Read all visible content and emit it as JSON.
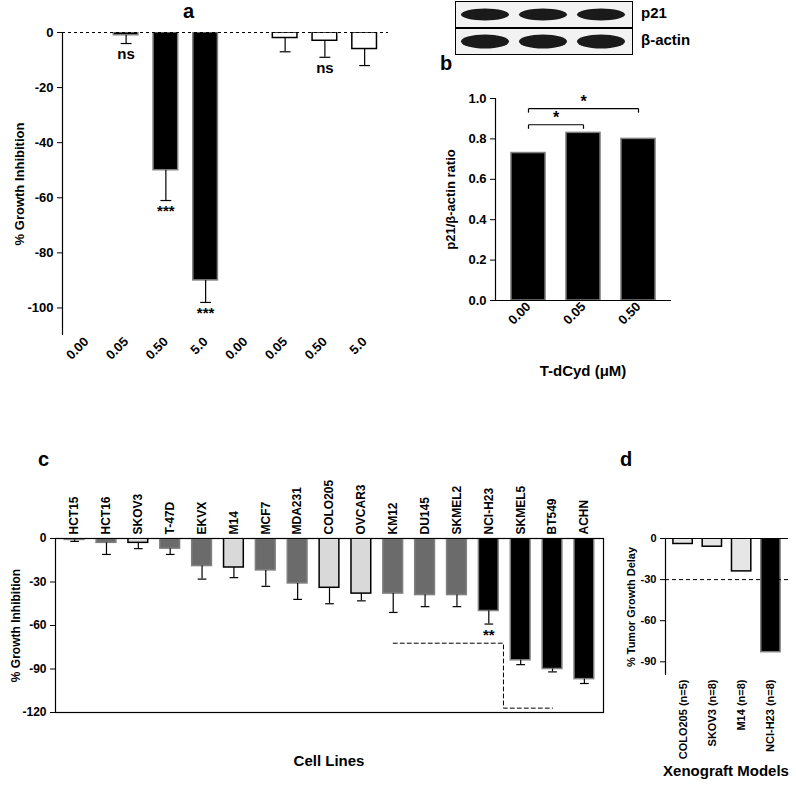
{
  "chart_data": [
    {
      "type": "bar",
      "panel_label": "a",
      "categories": [
        "0.00",
        "0.05",
        "0.50",
        "5.0",
        "0.00",
        "0.05",
        "0.50",
        "5.0"
      ],
      "values": [
        0,
        -1,
        -50,
        -90,
        0,
        -2,
        -3,
        -6
      ],
      "errors": [
        0,
        3,
        11,
        8,
        0,
        5,
        6,
        6
      ],
      "colors": [
        "#000000",
        "#000000",
        "#000000",
        "#000000",
        "#ffffff",
        "#ffffff",
        "#ffffff",
        "#ffffff"
      ],
      "ylabel": "% Growth Inhibition",
      "ylim": [
        -110,
        0
      ],
      "yticks": [
        0,
        -20,
        -40,
        -60,
        -80,
        -100
      ],
      "annotations": [
        {
          "text": "ns",
          "category_index": 1
        },
        {
          "text": "***",
          "category_index": 2
        },
        {
          "text": "***",
          "category_index": 3
        },
        {
          "text": "ns",
          "category_index": 6
        }
      ]
    },
    {
      "type": "bar",
      "panel_label": "b",
      "categories": [
        "0.00",
        "0.05",
        "0.50"
      ],
      "values": [
        0.73,
        0.83,
        0.8
      ],
      "colors": [
        "#000000",
        "#000000",
        "#000000"
      ],
      "xlabel": "T-dCyd (μM)",
      "ylabel": "p21/β-actin ratio",
      "ylim": [
        0,
        1
      ],
      "yticks": [
        {
          "value": 0,
          "label": "0.0"
        },
        {
          "value": 0.2,
          "label": "0.2"
        },
        {
          "value": 0.4,
          "label": "0.4"
        },
        {
          "value": 0.6,
          "label": "0.6"
        },
        {
          "value": 0.8,
          "label": "0.8"
        },
        {
          "value": 1,
          "label": "1.0"
        }
      ],
      "blot_labels": [
        "p21",
        "β-actin"
      ],
      "significance": [
        {
          "from": 0,
          "to": 1,
          "text": "*"
        },
        {
          "from": 0,
          "to": 2,
          "text": "*"
        }
      ]
    },
    {
      "type": "bar",
      "panel_label": "c",
      "categories": [
        "HCT15",
        "HCT16",
        "SKOV3",
        "T-47D",
        "EKVX",
        "M14",
        "MCF7",
        "MDA231",
        "COLO205",
        "OVCAR3",
        "KM12",
        "DU145",
        "SKMEL2",
        "NCI-H23",
        "SKMEL5",
        "BT549",
        "ACHN"
      ],
      "values": [
        -1,
        -3,
        -3,
        -7,
        -19,
        -20,
        -22,
        -31,
        -34,
        -38,
        -38,
        -39,
        -39,
        -50,
        -84,
        -90,
        -97
      ],
      "errors": [
        1,
        8,
        4,
        4,
        9,
        7,
        11,
        11,
        11,
        5,
        13,
        8,
        8,
        9,
        3,
        2,
        3
      ],
      "colors": [
        "#6b6b6b",
        "#6b6b6b",
        "#d9d9d9",
        "#6b6b6b",
        "#6b6b6b",
        "#d9d9d9",
        "#6b6b6b",
        "#6b6b6b",
        "#d9d9d9",
        "#d9d9d9",
        "#6b6b6b",
        "#6b6b6b",
        "#6b6b6b",
        "#000000",
        "#000000",
        "#000000",
        "#000000"
      ],
      "xlabel": "Cell Lines",
      "ylabel": "% Growth Inhibition",
      "ylim": [
        -120,
        0
      ],
      "yticks": [
        0,
        -30,
        -60,
        -90,
        -120
      ],
      "annotations": [
        {
          "text": "**",
          "category_index": 13
        }
      ],
      "bracket_categories": [
        "KM12",
        "NCI-H23",
        "BT549"
      ]
    },
    {
      "type": "bar",
      "panel_label": "d",
      "categories": [
        "COLO205 (n=5)",
        "SKOV3 (n=8)",
        "M14 (n=8)",
        "NCI-H23 (n=8)"
      ],
      "values": [
        -4,
        -6,
        -24,
        -83
      ],
      "colors": [
        "#e6e6e6",
        "#e6e6e6",
        "#e6e6e6",
        "#000000"
      ],
      "xlabel": "Xenograft Models",
      "ylabel": "% Tumor Growth Delay",
      "ylim": [
        -100,
        0
      ],
      "yticks": [
        0,
        -30,
        -60,
        -90
      ],
      "threshold": -30
    }
  ]
}
